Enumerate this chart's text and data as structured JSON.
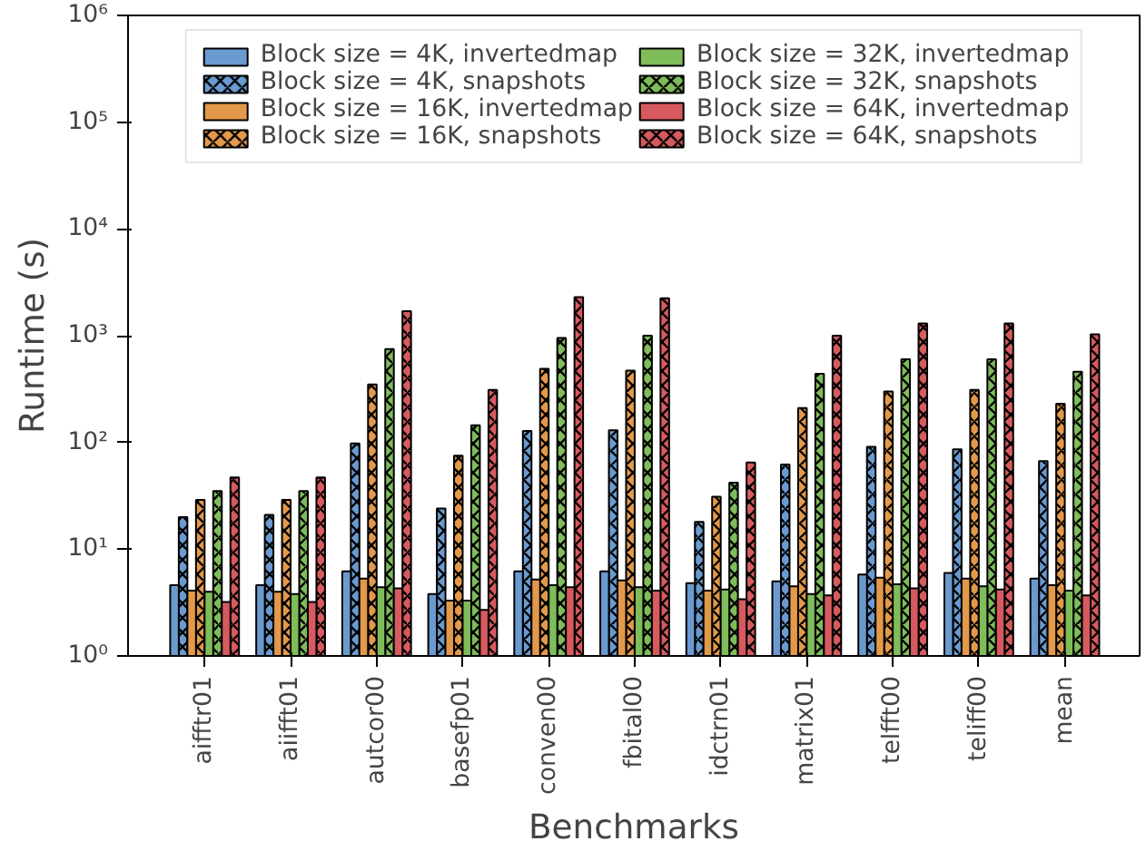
{
  "chart_data": {
    "type": "bar",
    "xlabel": "Benchmarks",
    "ylabel": "Runtime (s)",
    "log": "y",
    "categories": [
      "aifftr01",
      "aiifft01",
      "autcor00",
      "basefp01",
      "conven00",
      "fbital00",
      "idctrn01",
      "matrix01",
      "telfft00",
      "teliff00",
      "mean"
    ],
    "series": [
      {
        "name": "Block size = 4K, invertedmap",
        "color": "#6a9acf",
        "values": [
          4.6,
          4.6,
          6.2,
          3.8,
          6.2,
          6.2,
          4.8,
          5.0,
          5.8,
          6.0,
          5.3
        ]
      },
      {
        "name": "Block size = 4K, snapshots",
        "color": "#6a9acf",
        "values": [
          20,
          21,
          98,
          24,
          128,
          130,
          18,
          62,
          91,
          86,
          67
        ]
      },
      {
        "name": "Block size = 16K, invertedmap",
        "color": "#e3994a",
        "values": [
          4.1,
          4.0,
          5.3,
          3.3,
          5.2,
          5.1,
          4.1,
          4.5,
          5.4,
          5.3,
          4.6
        ]
      },
      {
        "name": "Block size = 16K, snapshots",
        "color": "#e3994a",
        "values": [
          29,
          29,
          350,
          75,
          490,
          470,
          31,
          210,
          300,
          310,
          230
        ]
      },
      {
        "name": "Block size = 32K, invertedmap",
        "color": "#7fbc5a",
        "values": [
          4.0,
          3.8,
          4.4,
          3.3,
          4.6,
          4.4,
          4.2,
          3.8,
          4.7,
          4.5,
          4.1
        ]
      },
      {
        "name": "Block size = 32K, snapshots",
        "color": "#7fbc5a",
        "values": [
          35,
          35,
          750,
          145,
          950,
          1000,
          42,
          440,
          600,
          600,
          460
        ]
      },
      {
        "name": "Block size = 64K, invertedmap",
        "color": "#d65a5f",
        "values": [
          3.2,
          3.2,
          4.3,
          2.7,
          4.4,
          4.1,
          3.4,
          3.7,
          4.3,
          4.2,
          3.7
        ]
      },
      {
        "name": "Block size = 64K, snapshots",
        "color": "#d65a5f",
        "values": [
          47,
          47,
          1700,
          310,
          2300,
          2240,
          65,
          1000,
          1300,
          1300,
          1030
        ]
      }
    ],
    "ylim": [
      1,
      1000000
    ],
    "yticks": [
      {
        "value": 1,
        "label": "10⁰"
      },
      {
        "value": 10,
        "label": "10¹"
      },
      {
        "value": 100,
        "label": "10²"
      },
      {
        "value": 1000,
        "label": "10³"
      },
      {
        "value": 10000,
        "label": "10⁴"
      },
      {
        "value": 100000,
        "label": "10⁵"
      },
      {
        "value": 1000000,
        "label": "10⁶"
      }
    ],
    "grid": false,
    "legend": "top"
  }
}
